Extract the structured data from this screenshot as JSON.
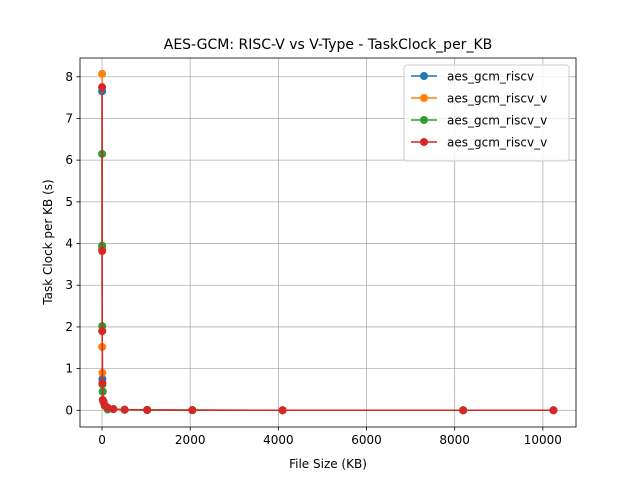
{
  "chart_data": {
    "type": "line",
    "title": "AES-GCM: RISC-V vs V-Type - TaskClock_per_KB",
    "xlabel": "File Size (KB)",
    "ylabel": "Task Clock per KB (s)",
    "xlim": [
      -500,
      10752
    ],
    "ylim": [
      -0.4,
      8.45
    ],
    "xticks": [
      0,
      2000,
      4000,
      6000,
      8000,
      10000
    ],
    "yticks": [
      0,
      1,
      2,
      3,
      4,
      5,
      6,
      7,
      8
    ],
    "grid": true,
    "legend": "top-right",
    "series": [
      {
        "name": "aes_gcm_riscv",
        "color": "#1f77b4",
        "x": [
          1,
          2,
          4,
          8,
          16,
          32,
          64,
          128,
          256,
          512,
          1024,
          2048,
          4096,
          8192,
          10240
        ],
        "y": [
          7.65,
          3.85,
          1.9,
          0.75,
          0.45,
          0.22,
          0.12,
          0.06,
          0.03,
          0.015,
          0.008,
          0.004,
          0.002,
          0.001,
          0.001
        ]
      },
      {
        "name": "aes_gcm_riscv_v",
        "color": "#ff7f0e",
        "x": [
          1,
          2,
          4,
          8,
          16,
          32,
          64,
          128,
          256,
          512,
          1024,
          2048,
          4096,
          8192,
          10240
        ],
        "y": [
          8.07,
          3.9,
          1.52,
          0.9,
          0.45,
          0.22,
          0.11,
          0.06,
          0.03,
          0.015,
          0.008,
          0.004,
          0.002,
          0.001,
          0.001
        ]
      },
      {
        "name": "aes_gcm_riscv_v",
        "color": "#2ca02c",
        "x": [
          1,
          2,
          4,
          8,
          16,
          32,
          64,
          128,
          256,
          512,
          1024,
          2048,
          4096,
          8192,
          10240
        ],
        "y": [
          6.15,
          3.95,
          2.02,
          0.62,
          0.45,
          0.22,
          0.11,
          0.02,
          0.03,
          0.015,
          0.008,
          0.004,
          0.002,
          0.001,
          0.001
        ]
      },
      {
        "name": "aes_gcm_riscv_v",
        "color": "#d62728",
        "x": [
          1,
          2,
          4,
          8,
          16,
          32,
          64,
          128,
          256,
          512,
          1024,
          2048,
          4096,
          8192,
          10240
        ],
        "y": [
          7.75,
          3.82,
          1.9,
          0.65,
          0.25,
          0.2,
          0.12,
          0.06,
          0.03,
          0.015,
          0.008,
          0.004,
          0.002,
          0.001,
          0.001
        ]
      }
    ]
  }
}
